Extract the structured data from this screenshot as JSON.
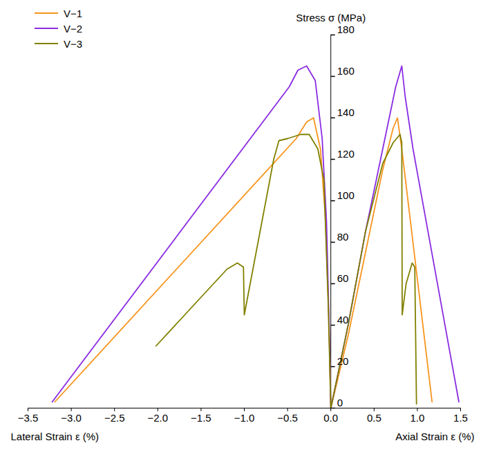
{
  "chart_data": {
    "type": "line",
    "ylabel": "Stress σ (MPa)",
    "xlabels": [
      "Lateral Strain ε (%)",
      "Axial Strain ε (%)"
    ],
    "xlim": [
      -3.5,
      1.5
    ],
    "xticks": [
      {
        "value": -3.5,
        "label": "−3.5"
      },
      {
        "value": -3.0,
        "label": "−3.0"
      },
      {
        "value": -2.5,
        "label": "−2.5"
      },
      {
        "value": -2.0,
        "label": "−2.0"
      },
      {
        "value": -1.5,
        "label": "−1.5"
      },
      {
        "value": -1.0,
        "label": "−1.0"
      },
      {
        "value": -0.5,
        "label": "−0.5"
      },
      {
        "value": 0,
        "label": "0.0"
      },
      {
        "value": 0.5,
        "label": "0.5"
      },
      {
        "value": 1.0,
        "label": "1.0"
      },
      {
        "value": 1.5,
        "label": "1.5"
      }
    ],
    "ylim": [
      0,
      180
    ],
    "yticks": [
      0,
      20,
      40,
      60,
      80,
      100,
      120,
      140,
      160,
      180
    ],
    "legend": "top-left",
    "grid": false,
    "series": [
      {
        "name": "V−1",
        "color": "#f7941d",
        "x": [
          -3.19,
          -0.4,
          -0.28,
          -0.2,
          -0.12,
          -0.06,
          -0.02,
          0,
          0.2,
          0.4,
          0.6,
          0.72,
          0.77,
          0.82,
          1.17
        ],
        "values": [
          3,
          130,
          138,
          140,
          125,
          90,
          40,
          0,
          35,
          75,
          115,
          135,
          140,
          125,
          3
        ]
      },
      {
        "name": "V−2",
        "color": "#8a2be2",
        "x": [
          -3.22,
          -0.48,
          -0.38,
          -0.28,
          -0.18,
          -0.1,
          -0.05,
          -0.02,
          0,
          0.2,
          0.4,
          0.6,
          0.75,
          0.82,
          0.86,
          0.95,
          1.48
        ],
        "values": [
          3,
          155,
          163,
          165,
          158,
          130,
          90,
          40,
          0,
          40,
          85,
          125,
          155,
          165,
          150,
          125,
          3
        ]
      },
      {
        "name": "V−3",
        "color": "#808000",
        "x": [
          -2.02,
          -1.4,
          -1.2,
          -1.08,
          -1.01,
          -1.0,
          -0.66,
          -0.6,
          -0.5,
          -0.35,
          -0.25,
          -0.15,
          -0.08,
          -0.03,
          0,
          0.2,
          0.4,
          0.6,
          0.72,
          0.8,
          0.82,
          0.825,
          0.87,
          0.94,
          0.97,
          0.99
        ],
        "values": [
          30,
          58,
          67,
          70,
          68,
          45,
          120,
          129,
          130,
          132,
          132,
          125,
          110,
          50,
          0,
          40,
          85,
          118,
          128,
          132,
          128,
          45,
          60,
          70,
          68,
          2
        ]
      }
    ]
  }
}
